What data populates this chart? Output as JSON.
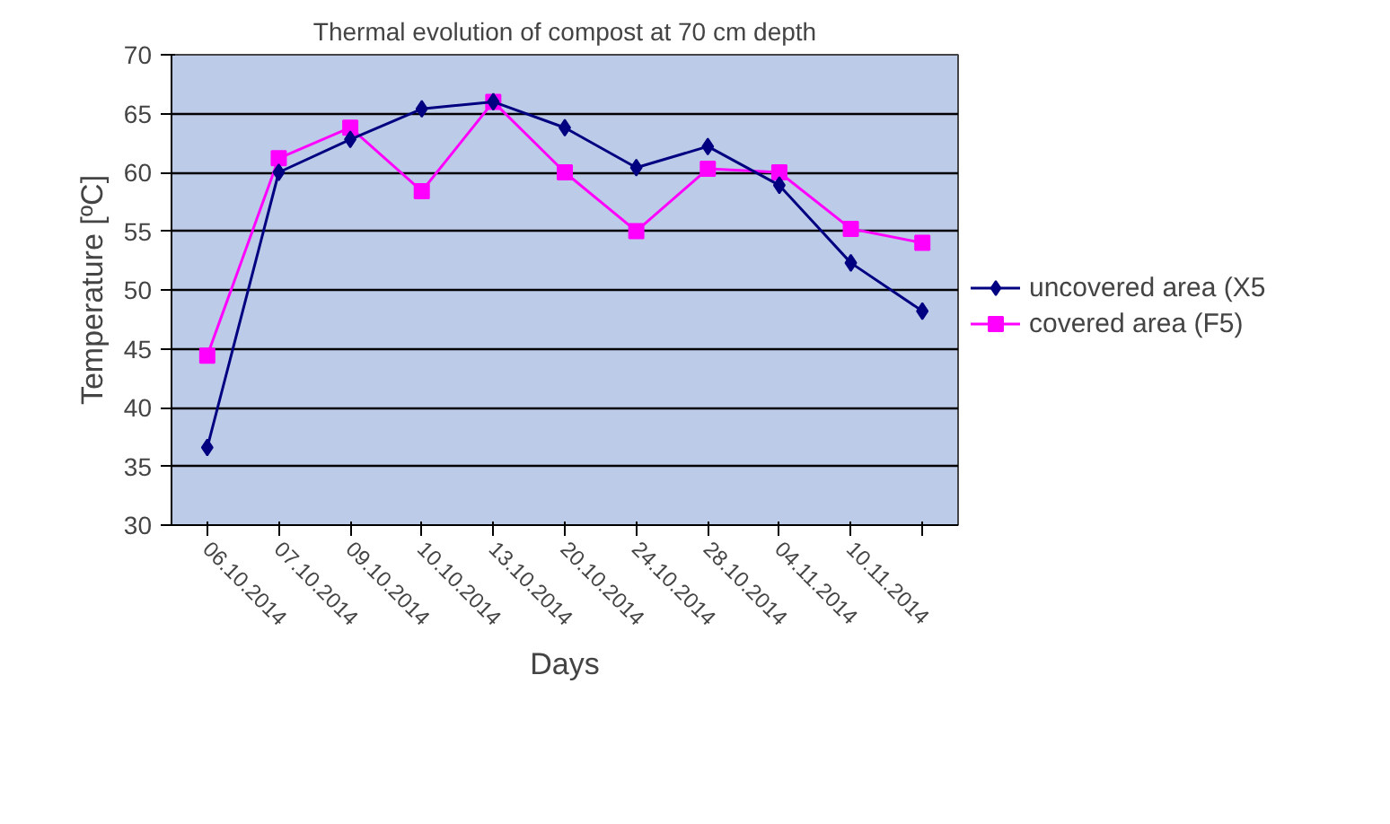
{
  "chart_data": {
    "type": "line",
    "title": "Thermal evolution of compost at 70 cm depth",
    "xlabel": "Days",
    "ylabel": "Temperature [ºC]",
    "categories": [
      "06.10.2014",
      "07.10.2014",
      "09.10.2014",
      "10.10.2014",
      "13.10.2014",
      "20.10.2014",
      "24.10.2014",
      "28.10.2014",
      "04.11.2014",
      "10.11.2014",
      null
    ],
    "series": [
      {
        "name": "uncovered area (X5",
        "color": "#000080",
        "marker": "diamond",
        "values": [
          36.6,
          60,
          62.8,
          65.4,
          66,
          63.8,
          60.4,
          62.2,
          58.9,
          52.3,
          48.2
        ]
      },
      {
        "name": "covered area (F5)",
        "color": "#ff00ff",
        "marker": "square",
        "values": [
          44.4,
          61.2,
          63.8,
          58.4,
          66,
          60,
          55,
          60.3,
          60,
          55.2,
          54
        ]
      }
    ],
    "ylim": [
      30,
      70
    ],
    "yticks": [
      30,
      35,
      40,
      45,
      50,
      55,
      60,
      65,
      70
    ],
    "grid": "y",
    "legend": "right"
  }
}
